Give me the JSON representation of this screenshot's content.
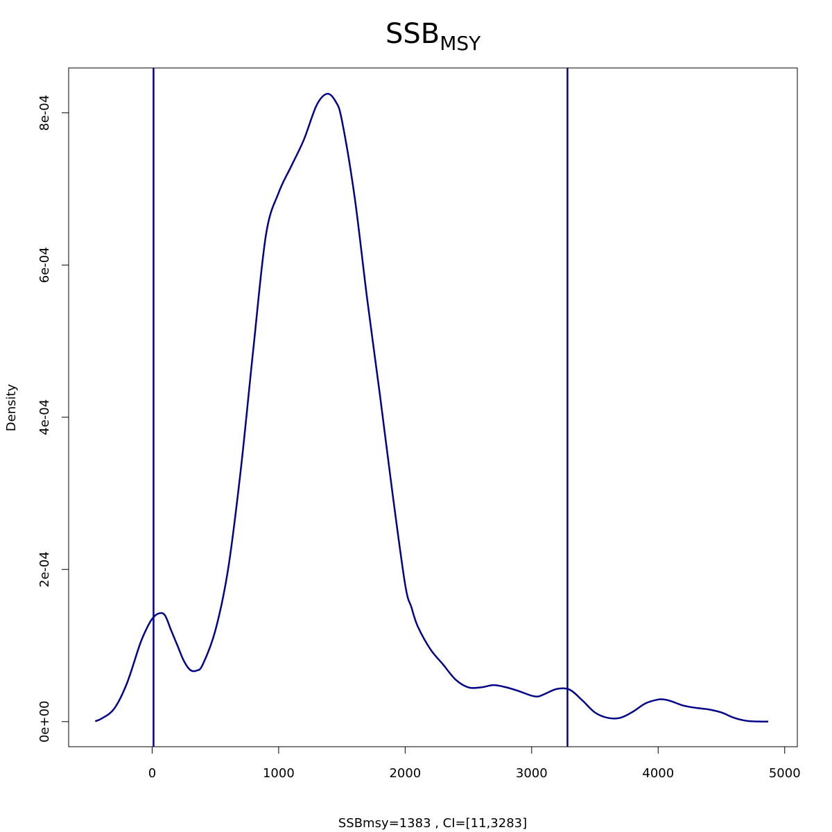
{
  "chart_data": {
    "type": "line",
    "title": "SSB",
    "title_subscript": "MSY",
    "xlabel": "SSBmsy=1383 , CI=[11,3283]",
    "ylabel": "Density",
    "xlim": [
      -660,
      5100
    ],
    "ylim": [
      -3.3e-05,
      0.000859
    ],
    "x_ticks": [
      0,
      1000,
      2000,
      3000,
      4000,
      5000
    ],
    "x_tick_labels": [
      "0",
      "1000",
      "2000",
      "3000",
      "4000",
      "5000"
    ],
    "y_ticks": [
      0,
      0.0002,
      0.0004,
      0.0006,
      0.0008
    ],
    "y_tick_labels": [
      "0e+00",
      "2e-04",
      "4e-04",
      "6e-04",
      "8e-04"
    ],
    "grid": false,
    "line_color": "#00008B",
    "series": [
      {
        "x": [
          -450,
          -400,
          -300,
          -200,
          -100,
          -50,
          0,
          50,
          100,
          150,
          200,
          250,
          300,
          350,
          400,
          500,
          600,
          700,
          800,
          900,
          1000,
          1100,
          1200,
          1300,
          1383,
          1450,
          1500,
          1600,
          1700,
          1800,
          1900,
          2000,
          2050,
          2100,
          2200,
          2300,
          2400,
          2500,
          2600,
          2700,
          2800,
          2900,
          3000,
          3050,
          3100,
          3200,
          3300,
          3400,
          3500,
          3600,
          3700,
          3800,
          3900,
          4000,
          4050,
          4100,
          4200,
          4300,
          4400,
          4500,
          4600,
          4700,
          4800,
          4870
        ],
        "y": [
          5e-07,
          4e-06,
          1.7e-05,
          5e-05,
          0.0001,
          0.00012,
          0.000135,
          0.000142,
          0.00014,
          0.00012,
          0.0001,
          8e-05,
          6.8e-05,
          6.7e-05,
          7.5e-05,
          0.00012,
          0.0002,
          0.00033,
          0.00049,
          0.00064,
          0.000695,
          0.00073,
          0.000765,
          0.00081,
          0.000825,
          0.000815,
          0.00079,
          0.00069,
          0.000555,
          0.00043,
          0.0003,
          0.00018,
          0.00015,
          0.000125,
          9.5e-05,
          7.5e-05,
          5.5e-05,
          4.5e-05,
          4.5e-05,
          4.8e-05,
          4.5e-05,
          4e-05,
          3.4e-05,
          3.3e-05,
          3.6e-05,
          4.3e-05,
          4.2e-05,
          2.8e-05,
          1.2e-05,
          5e-06,
          5e-06,
          1.3e-05,
          2.4e-05,
          2.9e-05,
          2.9e-05,
          2.7e-05,
          2.1e-05,
          1.8e-05,
          1.6e-05,
          1.2e-05,
          5e-06,
          1e-06,
          1e-07,
          0
        ]
      }
    ],
    "vlines": [
      11,
      3283
    ]
  }
}
